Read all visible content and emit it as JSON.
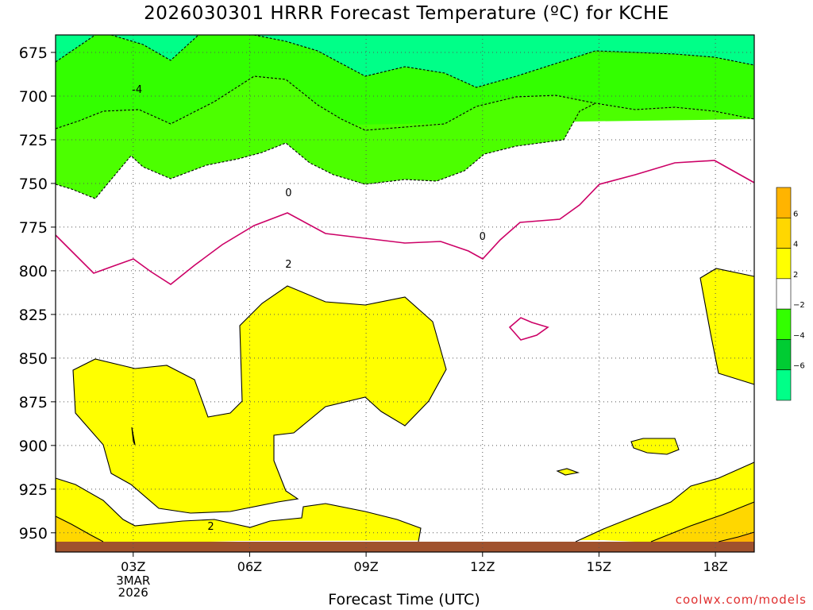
{
  "chart_data": {
    "type": "heatmap",
    "title": "2026030301 HRRR Forecast Temperature (ºC) for KCHE",
    "xlabel": "Forecast Time (UTC)",
    "ylabel": "",
    "x_ticks": [
      "03Z",
      "06Z",
      "09Z",
      "12Z",
      "15Z",
      "18Z"
    ],
    "x_tick_hours": [
      3,
      6,
      9,
      12,
      15,
      18
    ],
    "x_date_label": [
      "3MAR",
      "2026"
    ],
    "xlim_hours": [
      1,
      19
    ],
    "y_ticks": [
      675,
      700,
      725,
      750,
      775,
      800,
      825,
      850,
      875,
      900,
      925,
      950
    ],
    "ylim_hpa": [
      665,
      961
    ],
    "contour_levels": [
      -6,
      -4,
      -2,
      0,
      2,
      4,
      6
    ],
    "contour_labels": [
      {
        "hour": 3.1,
        "hpa": 696,
        "text": "-4"
      },
      {
        "hour": 7.0,
        "hpa": 755,
        "text": "0"
      },
      {
        "hour": 12.0,
        "hpa": 780,
        "text": "0"
      },
      {
        "hour": 7.0,
        "hpa": 796,
        "text": "2"
      },
      {
        "hour": 5.0,
        "hpa": 946,
        "text": "2"
      }
    ],
    "colorbar": {
      "ticks": [
        "6",
        "4",
        "2",
        "−2",
        "−4",
        "−6"
      ],
      "colors": [
        "#ffb400",
        "#ffd700",
        "#ffff00",
        "#ffffff",
        "#33ff00",
        "#00cc33",
        "#00ff88"
      ]
    },
    "fill_colors": {
      "cold_deep": "#00ff80",
      "cold": "#33ff00",
      "cool": "#4cff00",
      "neutral": "#ffffff",
      "warm": "#ffff00",
      "warmer": "#ffd700",
      "warmest": "#ffb400",
      "zero_line": "#cc0066",
      "ground": "#a0522d"
    }
  },
  "credit": "coolwx.com/models"
}
